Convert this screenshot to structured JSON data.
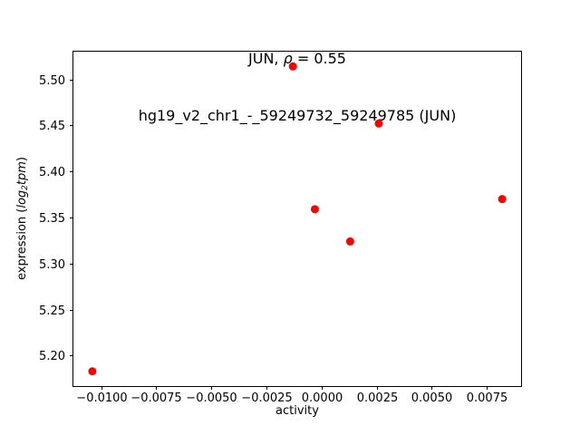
{
  "figure": {
    "title": {
      "prefix": "JUN, ",
      "rho": "ρ",
      "rest": " = 0.55",
      "line2": "hg19_v2_chr1_-_59249732_59249785 (JUN)"
    },
    "xlabel": "activity",
    "ylabel": {
      "prefix": "expression (",
      "log_word": "log",
      "log_sub": "2",
      "tpm_word": "tpm",
      "suffix": ")"
    }
  },
  "chart_data": {
    "type": "scatter",
    "title": "JUN, ρ = 0.55",
    "subtitle": "hg19_v2_chr1_-_59249732_59249785 (JUN)",
    "xlabel": "activity",
    "ylabel": "expression (log2 tpm)",
    "marker_color": "#ff0000",
    "marker_radius_px": 4.5,
    "x": [
      -0.0104,
      -0.0013,
      -0.0003,
      0.0013,
      0.0026,
      0.0082
    ],
    "y": [
      5.183,
      5.514,
      5.359,
      5.324,
      5.452,
      5.37
    ],
    "xlim": [
      -0.0113,
      0.0091
    ],
    "ylim": [
      5.166,
      5.531
    ],
    "xtick_values": [
      -0.01,
      -0.0075,
      -0.005,
      -0.0025,
      0.0,
      0.0025,
      0.005,
      0.0075
    ],
    "xtick_labels": [
      "−0.0100",
      "−0.0075",
      "−0.0050",
      "−0.0025",
      "0.0000",
      "0.0025",
      "0.0050",
      "0.0075"
    ],
    "ytick_values": [
      5.2,
      5.25,
      5.3,
      5.35,
      5.4,
      5.45,
      5.5
    ],
    "ytick_labels": [
      "5.20",
      "5.25",
      "5.30",
      "5.35",
      "5.40",
      "5.45",
      "5.50"
    ],
    "grid": false,
    "legend": null
  }
}
